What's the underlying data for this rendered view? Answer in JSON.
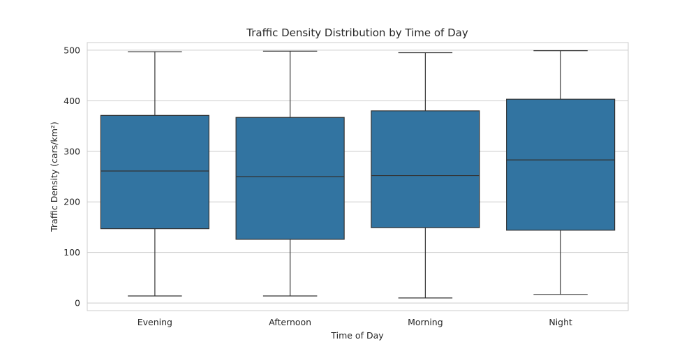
{
  "chart_data": {
    "type": "box",
    "title": "Traffic Density Distribution by Time of Day",
    "xlabel": "Time of Day",
    "ylabel": "Traffic Density (cars/km²)",
    "ylim": [
      -15,
      515
    ],
    "yticks": [
      0,
      100,
      200,
      300,
      400,
      500
    ],
    "grid": true,
    "box_color": "#3274a1",
    "categories": [
      "Evening",
      "Afternoon",
      "Morning",
      "Night"
    ],
    "boxes": [
      {
        "category": "Evening",
        "min": 14,
        "q1": 147,
        "median": 261,
        "q3": 371,
        "max": 497
      },
      {
        "category": "Afternoon",
        "min": 14,
        "q1": 126,
        "median": 250,
        "q3": 367,
        "max": 498
      },
      {
        "category": "Morning",
        "min": 10,
        "q1": 149,
        "median": 252,
        "q3": 380,
        "max": 495
      },
      {
        "category": "Night",
        "min": 17,
        "q1": 144,
        "median": 283,
        "q3": 403,
        "max": 499
      }
    ]
  }
}
